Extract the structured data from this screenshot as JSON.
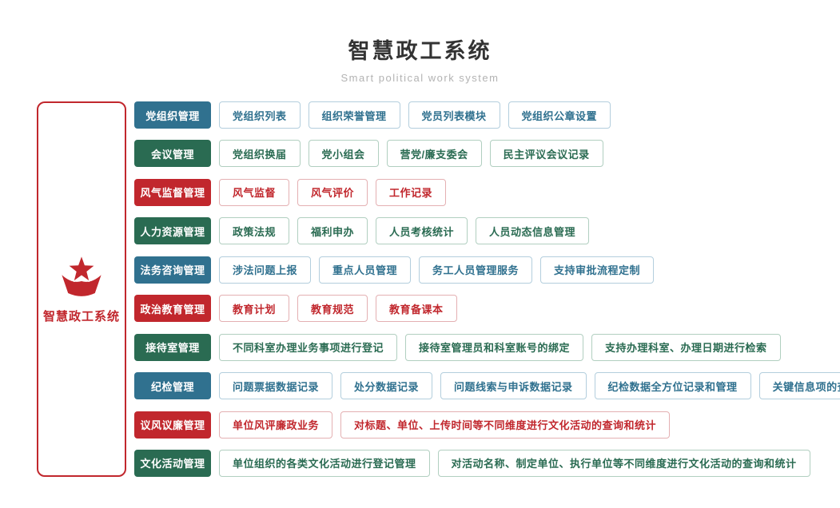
{
  "page": {
    "title": "智慧政工系统",
    "subtitle": "Smart political work system"
  },
  "sidebar": {
    "icon": "star-banner-icon",
    "label": "智慧政工系统"
  },
  "colors": {
    "red": "#c1272d",
    "blue": "#30718f",
    "green": "#2a6b52"
  },
  "rows": [
    {
      "category": "党组织管理",
      "color": "blue",
      "items": [
        "党组织列表",
        "组织荣誉管理",
        "党员列表模块",
        "党组织公章设置"
      ]
    },
    {
      "category": "会议管理",
      "color": "green",
      "items": [
        "党组织换届",
        "党小组会",
        "营党/廉支委会",
        "民主评议会议记录"
      ]
    },
    {
      "category": "风气监督管理",
      "color": "red",
      "items": [
        "风气监督",
        "风气评价",
        "工作记录"
      ]
    },
    {
      "category": "人力资源管理",
      "color": "green",
      "items": [
        "政策法规",
        "福利申办",
        "人员考核统计",
        "人员动态信息管理"
      ]
    },
    {
      "category": "法务咨询管理",
      "color": "blue",
      "items": [
        "涉法问题上报",
        "重点人员管理",
        "务工人员管理服务",
        "支持审批流程定制"
      ]
    },
    {
      "category": "政治教育管理",
      "color": "red",
      "items": [
        "教育计划",
        "教育规范",
        "教育备课本"
      ]
    },
    {
      "category": "接待室管理",
      "color": "green",
      "items": [
        "不同科室办理业务事项进行登记",
        "接待室管理员和科室账号的绑定",
        "支持办理科室、办理日期进行检索"
      ]
    },
    {
      "category": "纪检管理",
      "color": "blue",
      "items": [
        "问题票据数据记录",
        "处分数据记录",
        "问题线索与申诉数据记录",
        "纪检数据全方位记录和管理",
        "关键信息项的查询和统计"
      ]
    },
    {
      "category": "议风议廉管理",
      "color": "red",
      "items": [
        "单位风评廉政业务",
        "对标题、单位、上传时间等不同维度进行文化活动的查询和统计"
      ]
    },
    {
      "category": "文化活动管理",
      "color": "green",
      "items": [
        "单位组织的各类文化活动进行登记管理",
        "对活动名称、制定单位、执行单位等不同维度进行文化活动的查询和统计"
      ]
    }
  ]
}
